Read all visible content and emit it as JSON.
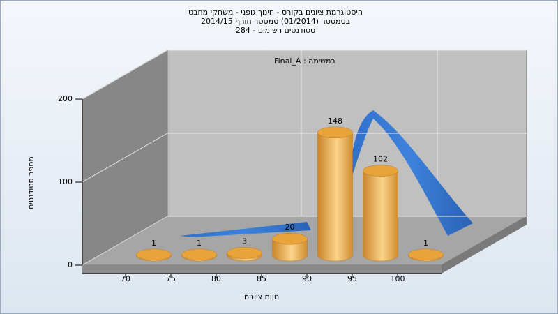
{
  "chart_data": {
    "type": "histogram",
    "title": [
      "היסטוגרמת ציונים בקורס - חינוך גופני - משחקי מחבט",
      "בסמסטר  (01/2014)  סמסטר חורף 2014/15",
      "סטודנטים רשומים - 284"
    ],
    "annotation": "במשימה : Final_A",
    "x_label": "טווח ציונים",
    "y_label": "מספר סטודנטים",
    "bins": [
      70,
      75,
      80,
      85,
      90,
      95,
      100,
      105
    ],
    "counts": [
      1,
      1,
      3,
      20,
      148,
      102,
      1
    ],
    "color": "#e8a33a",
    "xlim": [
      65,
      105
    ],
    "xticks": [
      70,
      75,
      80,
      85,
      90,
      95,
      100
    ],
    "ylim": [
      0,
      200
    ],
    "yticks": [
      0,
      100,
      200
    ],
    "grid": true
  }
}
